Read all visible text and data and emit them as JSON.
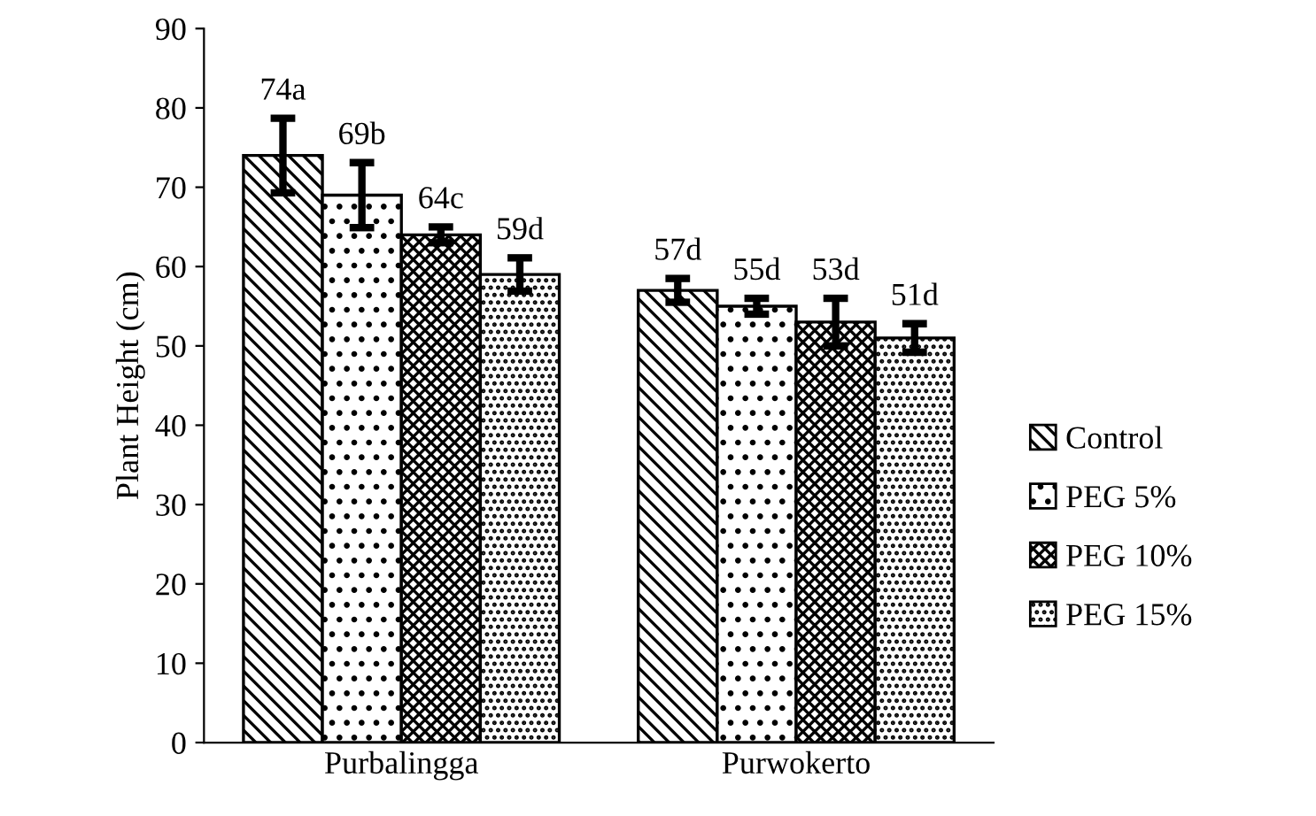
{
  "chart_data": {
    "type": "bar",
    "ylabel": "Plant Height (cm)",
    "categories": [
      "Purbalingga",
      "Purwokerto"
    ],
    "series": [
      {
        "name": "Control",
        "color": "#000000",
        "values": [
          74,
          57
        ],
        "errors": [
          4.7,
          1.5
        ],
        "value_labels": [
          "74a",
          "57d"
        ]
      },
      {
        "name": "PEG 5%",
        "color": "#000000",
        "values": [
          69,
          55
        ],
        "errors": [
          4.1,
          1
        ],
        "value_labels": [
          "69b",
          "55d"
        ]
      },
      {
        "name": "PEG 10%",
        "color": "#000000",
        "values": [
          64,
          53
        ],
        "errors": [
          1,
          3
        ],
        "value_labels": [
          "64c",
          "53d"
        ]
      },
      {
        "name": "PEG 15%",
        "color": "#000000",
        "values": [
          59,
          51
        ],
        "errors": [
          2.1,
          1.8
        ],
        "value_labels": [
          "59d",
          "51d"
        ]
      }
    ],
    "ylim": [
      0,
      90
    ],
    "yticks": [
      0,
      10,
      20,
      30,
      40,
      50,
      60,
      70,
      80,
      90
    ],
    "grid": false,
    "legend": "right"
  }
}
